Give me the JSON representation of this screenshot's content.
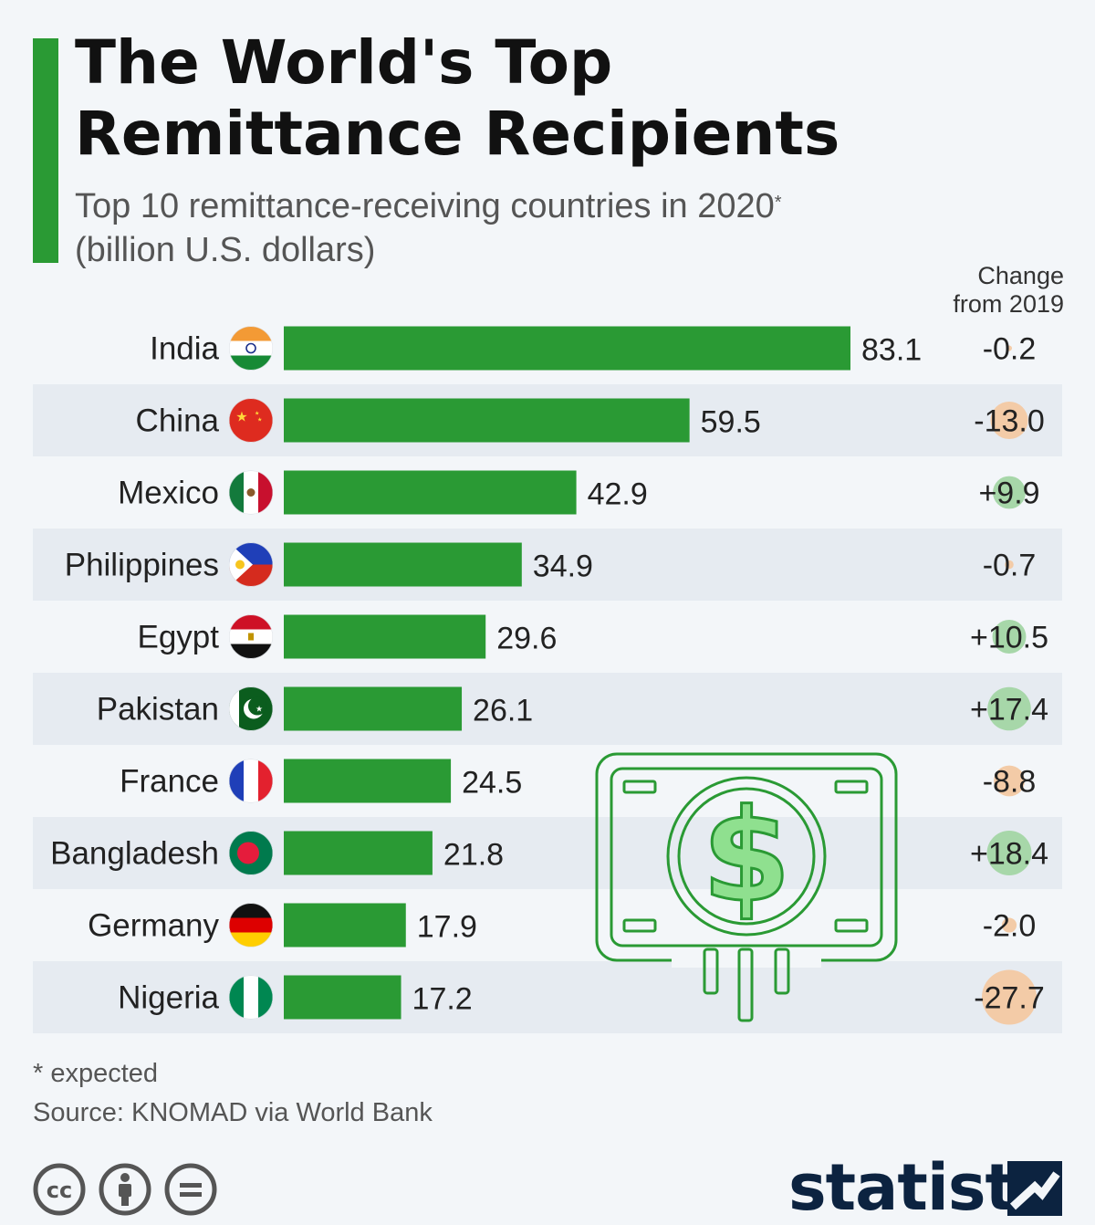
{
  "title": [
    "The World's Top",
    "Remittance Recipients"
  ],
  "subtitle": {
    "line1": "Top 10 remittance-receiving countries in 2020",
    "marker": "*",
    "line2": "(billion U.S. dollars)"
  },
  "change_header": [
    "Change",
    "from 2019"
  ],
  "footnote": "* expected",
  "source": "Source: KNOMAD via World Bank",
  "brand": "statista",
  "colors": {
    "accent": "#2a9a34",
    "bar": "#2a9a34",
    "row_stripe": "#e6ebf1",
    "positive_bubble": "#a7d7a9",
    "negative_bubble": "#f3cba7"
  },
  "license_icons": [
    "cc-icon",
    "attribution-icon",
    "no-derivatives-icon"
  ],
  "chart_data": {
    "type": "bar",
    "orientation": "horizontal",
    "categories": [
      "India",
      "China",
      "Mexico",
      "Philippines",
      "Egypt",
      "Pakistan",
      "France",
      "Bangladesh",
      "Germany",
      "Nigeria"
    ],
    "values": [
      83.1,
      59.5,
      42.9,
      34.9,
      29.6,
      26.1,
      24.5,
      21.8,
      17.9,
      17.2
    ],
    "value_labels": [
      "83.1",
      "59.5",
      "42.9",
      "34.9",
      "29.6",
      "26.1",
      "24.5",
      "21.8",
      "17.9",
      "17.2"
    ],
    "change_from_2019": [
      -0.2,
      -13.0,
      9.9,
      -0.7,
      10.5,
      17.4,
      -8.8,
      18.4,
      -2.0,
      -27.7
    ],
    "change_labels": [
      "-0.2",
      "-13.0",
      "+9.9",
      "-0.7",
      "+10.5",
      "+17.4",
      "-8.8",
      "+18.4",
      "-2.0",
      "-27.7"
    ],
    "flags": [
      "india-flag-icon",
      "china-flag-icon",
      "mexico-flag-icon",
      "philippines-flag-icon",
      "egypt-flag-icon",
      "pakistan-flag-icon",
      "france-flag-icon",
      "bangladesh-flag-icon",
      "germany-flag-icon",
      "nigeria-flag-icon"
    ],
    "xlim": [
      0,
      83.1
    ],
    "grid": false,
    "legend": "none"
  }
}
